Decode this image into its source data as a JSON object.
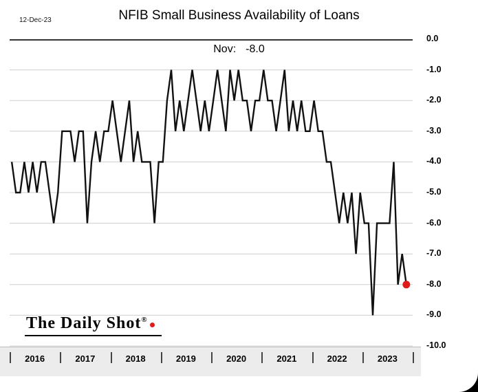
{
  "header": {
    "date": "12-Dec-23",
    "title": "NFIB Small Business Availability of Loans",
    "subtitle_label": "Nov:",
    "subtitle_value": "-8.0"
  },
  "logo": {
    "text": "The Daily Shot",
    "registered": "®"
  },
  "chart_data": {
    "type": "line",
    "title": "NFIB Small Business Availability of Loans",
    "annotation": "Nov: -8.0",
    "date_label": "12-Dec-23",
    "frequency": "monthly from Jan 2016 to Nov 2023",
    "categories": [
      "2016",
      "2017",
      "2018",
      "2019",
      "2020",
      "2021",
      "2022",
      "2023"
    ],
    "y_ticks": [
      "0.0",
      "-1.0",
      "-2.0",
      "-3.0",
      "-4.0",
      "-5.0",
      "-6.0",
      "-7.0",
      "-8.0",
      "-9.0",
      "-10.0"
    ],
    "ylim": [
      -10,
      0
    ],
    "grid": true,
    "legend": false,
    "line_color": "#111111",
    "last_point_color": "#e01b1b",
    "series": [
      {
        "name": "NFIB Small Business Availability of Loans (net %)",
        "values": [
          -4,
          -5,
          -5,
          -4,
          -5,
          -4,
          -5,
          -4,
          -4,
          -5,
          -6,
          -5,
          -3,
          -3,
          -3,
          -4,
          -3,
          -3,
          -6,
          -4,
          -3,
          -4,
          -3,
          -3,
          -2,
          -3,
          -4,
          -3,
          -2,
          -4,
          -3,
          -4,
          -4,
          -4,
          -6,
          -4,
          -4,
          -2,
          -1,
          -3,
          -2,
          -3,
          -2,
          -1,
          -2,
          -3,
          -2,
          -3,
          -2,
          -1,
          -2,
          -3,
          -1,
          -2,
          -1,
          -2,
          -2,
          -3,
          -2,
          -2,
          -1,
          -2,
          -2,
          -3,
          -2,
          -1,
          -3,
          -2,
          -3,
          -2,
          -3,
          -3,
          -2,
          -3,
          -3,
          -4,
          -4,
          -5,
          -6,
          -5,
          -6,
          -5,
          -7,
          -5,
          -6,
          -6,
          -9,
          -6,
          -6,
          -6,
          -6,
          -4,
          -8,
          -7,
          -8
        ]
      }
    ],
    "latest_point": {
      "month": "Nov 2023",
      "value": -8.0,
      "marker": "red-dot"
    }
  }
}
